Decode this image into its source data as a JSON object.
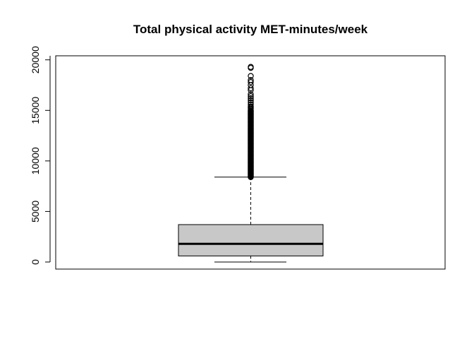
{
  "chart_data": {
    "type": "boxplot",
    "title": "Total physical activity MET-minutes/week",
    "xlabel": "",
    "ylabel": "",
    "ylim": [
      -700,
      20400
    ],
    "yticks": [
      0,
      5000,
      10000,
      15000,
      20000
    ],
    "ytick_labels": [
      "0",
      "5000",
      "10000",
      "15000",
      "20000"
    ],
    "grid": false,
    "box": {
      "min": 0,
      "q1": 600,
      "median": 1800,
      "q3": 3700,
      "whisker_low": 0,
      "whisker_high": 8400,
      "fill_color": "#c8c8c8"
    },
    "outliers": [
      8400,
      8450,
      8500,
      8550,
      8600,
      8650,
      8700,
      8750,
      8800,
      8850,
      8900,
      8950,
      9000,
      9050,
      9100,
      9150,
      9200,
      9250,
      9300,
      9350,
      9400,
      9450,
      9500,
      9550,
      9600,
      9650,
      9700,
      9750,
      9800,
      9850,
      9900,
      9950,
      10000,
      10050,
      10100,
      10150,
      10200,
      10250,
      10300,
      10350,
      10400,
      10450,
      10500,
      10550,
      10600,
      10650,
      10700,
      10750,
      10800,
      10850,
      10900,
      10950,
      11000,
      11050,
      11100,
      11150,
      11200,
      11250,
      11300,
      11350,
      11400,
      11450,
      11500,
      11550,
      11600,
      11650,
      11700,
      11750,
      11800,
      11850,
      11900,
      11950,
      12000,
      12050,
      12100,
      12150,
      12200,
      12250,
      12300,
      12350,
      12400,
      12450,
      12500,
      12550,
      12600,
      12650,
      12700,
      12750,
      12800,
      12850,
      12900,
      12950,
      13000,
      13050,
      13100,
      13150,
      13200,
      13250,
      13300,
      13350,
      13400,
      13450,
      13500,
      13550,
      13600,
      13650,
      13700,
      13750,
      13800,
      13850,
      13900,
      13950,
      14000,
      14050,
      14100,
      14150,
      14200,
      14250,
      14300,
      14350,
      14400,
      14450,
      14500,
      14550,
      14600,
      14650,
      14700,
      14750,
      14800,
      14850,
      14900,
      14950,
      15000,
      15100,
      15200,
      15300,
      15400,
      15600,
      15800,
      16000,
      16200,
      16400,
      16600,
      17000,
      17200,
      17500,
      17800,
      18000,
      18400,
      19200,
      19300
    ]
  }
}
